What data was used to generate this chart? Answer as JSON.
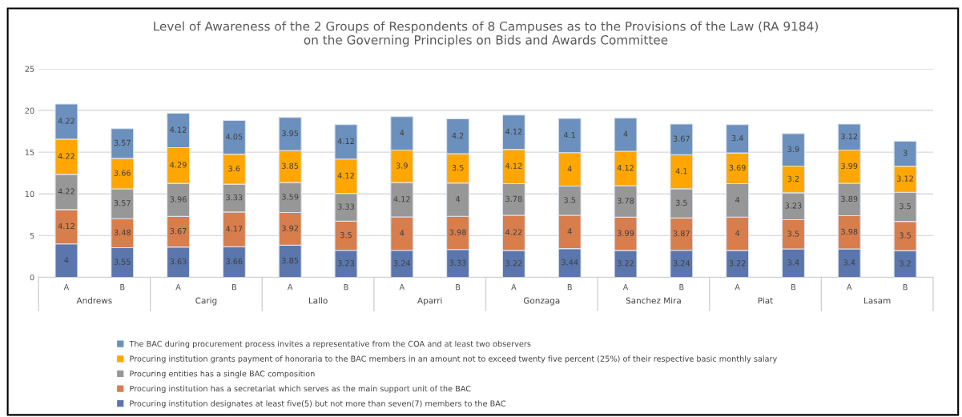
{
  "chart_data": {
    "type": "bar",
    "stacked": true,
    "title": "Level of Awareness of the 2 Groups of Respondents of 8 Campuses as to the Provisions of the Law (RA 9184)\non the Governing Principles on Bids and Awards Committee",
    "categories": [
      "A",
      "B",
      "A",
      "B",
      "A",
      "B",
      "A",
      "B",
      "A",
      "B",
      "A",
      "B",
      "A",
      "B",
      "A",
      "B"
    ],
    "annotations": [
      "Andrews",
      "Carig",
      "Lallo",
      "Aparri",
      "Gonzaga",
      "Sanchez Mira",
      "Piat",
      "Lasam"
    ],
    "series": [
      {
        "name": "Procuring institution designates at least five(5) but not more than seven(7) members to the BAC",
        "color": "#5a76ac",
        "values": [
          4,
          3.55,
          3.63,
          3.66,
          3.85,
          3.23,
          3.24,
          3.33,
          3.22,
          3.44,
          3.22,
          3.24,
          3.22,
          3.4,
          3.4,
          3.2
        ]
      },
      {
        "name": "Procuring institution has a secretariat which serves as the main support unit of the BAC",
        "color": "#d87d4c",
        "values": [
          4.12,
          3.48,
          3.67,
          4.17,
          3.92,
          3.5,
          4,
          3.98,
          4.22,
          4,
          3.99,
          3.87,
          4,
          3.5,
          3.98,
          3.5
        ]
      },
      {
        "name": "Procuring entities has a single BAC composition",
        "color": "#979797",
        "values": [
          4.22,
          3.57,
          3.96,
          3.33,
          3.59,
          3.33,
          4.12,
          4,
          3.78,
          3.5,
          3.78,
          3.5,
          4,
          3.23,
          3.89,
          3.5
        ]
      },
      {
        "name": "Procuring institution grants payment of honoraria to the BAC members in an amount not to exceed twenty five percent (25%) of their respective basic monthly salary",
        "color": "#ffa602",
        "values": [
          4.22,
          3.66,
          4.29,
          3.6,
          3.85,
          4.12,
          3.9,
          3.5,
          4.12,
          4,
          4.12,
          4.1,
          3.69,
          3.2,
          3.99,
          3.12
        ]
      },
      {
        "name": "The BAC during procurement process invites a representative from the COA and at least two observers",
        "color": "#6b90bd",
        "values": [
          4.22,
          3.57,
          4.12,
          4.05,
          3.95,
          4.12,
          4,
          4.2,
          4.12,
          4.1,
          4,
          3.67,
          3.4,
          3.9,
          3.12,
          3
        ]
      }
    ],
    "ylim": [
      0,
      25
    ],
    "yticks": [
      0,
      5,
      10,
      15,
      20,
      25
    ],
    "grid": "y",
    "legend": "bottom",
    "data_labels": true
  }
}
